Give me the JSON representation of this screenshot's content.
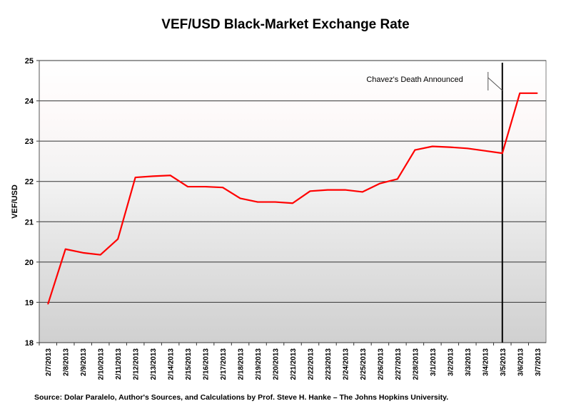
{
  "chart_data": {
    "type": "line",
    "title": "VEF/USD Black-Market Exchange Rate",
    "xlabel": "",
    "ylabel": "VEF/USD",
    "ylim": [
      18,
      25
    ],
    "yticks": [
      18,
      19,
      20,
      21,
      22,
      23,
      24,
      25
    ],
    "grid": true,
    "categories": [
      "2/7/2013",
      "2/8/2013",
      "2/9/2013",
      "2/10/2013",
      "2/11/2013",
      "2/12/2013",
      "2/13/2013",
      "2/14/2013",
      "2/15/2013",
      "2/16/2013",
      "2/17/2013",
      "2/18/2013",
      "2/19/2013",
      "2/20/2013",
      "2/21/2013",
      "2/22/2013",
      "2/23/2013",
      "2/24/2013",
      "2/25/2013",
      "2/26/2013",
      "2/27/2013",
      "2/28/2013",
      "3/1/2013",
      "3/2/2013",
      "3/3/2013",
      "3/4/2013",
      "3/5/2013",
      "3/6/2013",
      "3/7/2013"
    ],
    "series": [
      {
        "values": [
          18.96,
          20.32,
          20.23,
          20.18,
          20.57,
          22.1,
          22.13,
          22.15,
          21.87,
          21.87,
          21.85,
          21.58,
          21.49,
          21.49,
          21.46,
          21.76,
          21.79,
          21.79,
          21.74,
          21.95,
          22.06,
          22.78,
          22.87,
          22.85,
          22.82,
          22.76,
          22.7,
          24.19,
          24.19
        ],
        "color": "#ff0000"
      }
    ],
    "annotations": [
      {
        "text": "Chavez's Death Announced",
        "x": "3/5/2013",
        "type": "vertical-line",
        "color": "#000000"
      }
    ],
    "source": "Source: Dolar Paralelo, Author's Sources, and Calculations by Prof. Steve H. Hanke – The Johns Hopkins University."
  }
}
